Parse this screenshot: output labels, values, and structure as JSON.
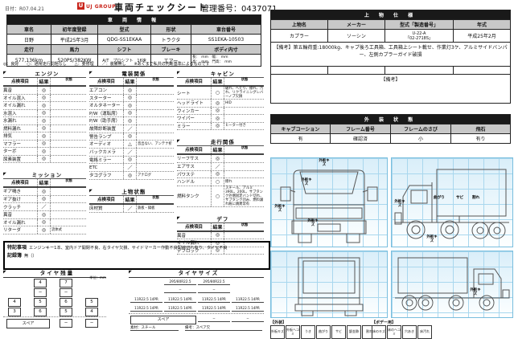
{
  "header": {
    "date": "日付：R07.04.21",
    "logo_mark": "U",
    "logo_text": "UJ GROUP",
    "title": "車両チェックシート",
    "control_no": "管理番号：0437071"
  },
  "vehicle_info": {
    "title": "車 両 情 報",
    "row1_headers": [
      "車名",
      "初年度登録",
      "型式",
      "形状",
      "車台番号"
    ],
    "row1_values": [
      "日野",
      "平成25年3月",
      "QDG-SS1EKAA",
      "トラクタ",
      "SS1EKA-10503"
    ],
    "row2_headers": [
      "走行",
      "馬力",
      "シフト",
      "ブレーキ",
      "ボディ内寸"
    ],
    "row2_values": [
      "577,136km",
      "520PS/382KW",
      "A/T　プロシフト　16速",
      "エアー"
    ],
    "body_dim_line1": "長：　mm　幅：　mm",
    "body_dim_line2": "高：　mm　門高：　mm"
  },
  "legend_note": "◎：良好　　○：通常走行問題なし　　△：要修理　　／：装備無し　　※あくまで私共の判断基準によるものです",
  "columns_header": {
    "item": "点検項目",
    "result": "結果",
    "state": "状態"
  },
  "checklists": {
    "engine": {
      "title": "エンジン",
      "rows": [
        [
          "異音",
          "◎",
          ""
        ],
        [
          "オイル混入",
          "◎",
          ""
        ],
        [
          "オイル漏れ",
          "◎",
          ""
        ],
        [
          "水混入",
          "◎",
          ""
        ],
        [
          "水漏れ",
          "◎",
          ""
        ],
        [
          "燃料漏れ",
          "◎",
          ""
        ],
        [
          "排気",
          "◎",
          ""
        ],
        [
          "マフラー",
          "◎",
          ""
        ],
        [
          "ターボ",
          "◎",
          ""
        ],
        [
          "尿素装置",
          "◎",
          ""
        ]
      ]
    },
    "mission": {
      "title": "ミッション",
      "rows": [
        [
          "ギア鳴き",
          "◎",
          ""
        ],
        [
          "ギア抜け",
          "◎",
          ""
        ],
        [
          "クラッチ",
          "／",
          ""
        ],
        [
          "異音",
          "◎",
          ""
        ],
        [
          "オイル漏れ",
          "◎",
          ""
        ],
        [
          "リターダ",
          "◎",
          "流体式"
        ]
      ]
    },
    "electrical": {
      "title": "電装関係",
      "rows": [
        [
          "エアコン",
          "◎",
          ""
        ],
        [
          "スターター",
          "◎",
          ""
        ],
        [
          "オルタネーター",
          "◎",
          ""
        ],
        [
          "P/W（運転席）",
          "◎",
          ""
        ],
        [
          "P/W（助手席）",
          "◎",
          ""
        ],
        [
          "故障診断装置",
          "／",
          ""
        ],
        [
          "警告ランプ",
          "◎",
          ""
        ],
        [
          "オーディオ",
          "△",
          "音出ない、アンテナ折"
        ],
        [
          "バックカメラ",
          "／",
          ""
        ],
        [
          "電格ミラー",
          "◎",
          ""
        ],
        [
          "ETC",
          "／",
          ""
        ],
        [
          "タコグラフ",
          "◎",
          "アナログ"
        ]
      ]
    },
    "body_state": {
      "title": "上物状態",
      "rows": [
        [
          "床材質",
          "／",
          "鉄板・縞板"
        ]
      ]
    },
    "cabin": {
      "title": "キャビン",
      "rows": [
        [
          "シート",
          "○",
          "破れ、へたり、擦れ、汚れ、リクライニングレバーノブ欠損"
        ],
        [
          "ヘッドライト",
          "◎",
          "HID"
        ],
        [
          "ウィンカー",
          "◎",
          ""
        ],
        [
          "ワイパー",
          "◎",
          ""
        ],
        [
          "ミラー",
          "◎",
          "ヒーター付き"
        ]
      ]
    },
    "driving": {
      "title": "走行関係",
      "rows": [
        [
          "リーフサス",
          "◎",
          ""
        ],
        [
          "エアサス",
          "／",
          ""
        ],
        [
          "パワステ",
          "◎",
          ""
        ],
        [
          "ハンドル",
          "○",
          "擦れ"
        ],
        [
          "燃料タンク",
          "○",
          "スチール、アルミ 390L、200L、サブタンク外側固定バンド切れ、サブタンク凹み、燃料漏れ痕に錆異常有"
        ]
      ]
    },
    "diff": {
      "title": "デフ",
      "rows": [
        [
          "異音",
          "◎",
          ""
        ],
        [
          "オイル漏れ",
          "◎",
          ""
        ],
        [
          "デフロック",
          "◎",
          ""
        ]
      ]
    }
  },
  "notes": {
    "label": "特記事項",
    "text": "エンジンキー1本、室内ドア開閉不良、右タイヤ欠損、サイドマーカー作動不良配線切れ有り、タイヤ不良",
    "record_label": "記録簿",
    "record_value": "無（）"
  },
  "tire_remaining": {
    "title": "タイヤ残量",
    "unit": "単位：mm",
    "front": [
      "4",
      "7"
    ],
    "row2": [
      "−",
      "−"
    ],
    "row3": [
      "4",
      "5",
      "6",
      "5"
    ],
    "row4": [
      "3",
      "6",
      "5",
      "4"
    ],
    "spare_label": "スペア",
    "spare_values": [
      "−",
      "−"
    ]
  },
  "tire_size": {
    "title": "タイヤサイズ",
    "row1": [
      "295/80R22.5",
      "295/80R22.5"
    ],
    "row2": [
      "−",
      "−"
    ],
    "row3": [
      "11R22.5 14PR",
      "11R22.5 14PR",
      "11R22.5 14PR",
      "11R22.5 14PR"
    ],
    "row4": [
      "11R22.5 14PR",
      "11R22.5 14PR",
      "11R22.5 14PR",
      "11R22.5 14PR"
    ],
    "spare_label": "スペア",
    "spare_values": [
      "−",
      "−"
    ],
    "material": "素材：スチール",
    "remark": "備考：スペア欠"
  },
  "body_spec": {
    "title": "上 物 仕 様",
    "headers": [
      "上物名",
      "メーカー",
      "型式「製造番号」",
      "年式"
    ],
    "values": [
      "カプラー",
      "ソーシン",
      "U-22-A",
      "平成25年2月"
    ],
    "model_line2": "「02-2718S」",
    "remark1": "【備考】第五輪荷重:18000kg、キャブ後ろ工具箱、工具箱上シート載せ、作業灯3ケ、アルミサイドバンパー、左側カプラーガイド破損",
    "remark2_label": "【備考】"
  },
  "exterior_state": {
    "title": "外 装 状 態",
    "headers": [
      "キャブコーション",
      "フレーム番号",
      "フレームのさび",
      "飛石"
    ],
    "values": [
      "有",
      "確認済",
      "小",
      "有り"
    ]
  },
  "diagram_labels": {
    "front": [
      "外板キズ",
      "外板キズ",
      "外板キズ",
      "外板キズ"
    ],
    "side_left": [
      "外板キズ",
      "曲がり",
      "サビ",
      "割れ",
      "外板キズ"
    ],
    "side_right": [
      "外板キズ"
    ]
  },
  "damage_legend": {
    "group1_label": "【外装】",
    "group1": [
      "外板キズ",
      "外板ヘコミ",
      "うき",
      "曲がり",
      "サビ",
      "鈑金跡",
      "割れ"
    ],
    "group2_label": "【ボデー用】",
    "group2": [
      "床のキズ",
      "床のヘコミ",
      "穴あき",
      "床汚れ"
    ]
  },
  "colors": {
    "accent_red": "#c9251c",
    "grid_blue": "#79bede",
    "header_dark": "#191919",
    "header_gray": "#c8c8c8"
  }
}
